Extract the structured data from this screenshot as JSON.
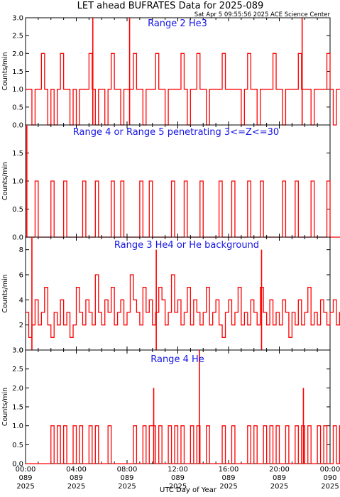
{
  "title": "LET ahead BUFRATES Data for 2025-089",
  "subtitle": "Sat Apr  5 09:55:56 2025 ACE Science Center",
  "colors": {
    "trace": "#ff0000",
    "label": "#1515e6",
    "axis": "#000000",
    "background": "#ffffff"
  },
  "chart_data": [
    {
      "type": "line",
      "label": "Range 2 He3",
      "ylabel": "Counts/min",
      "ylim": [
        0,
        3
      ],
      "yticks": [
        "0.0",
        "0.5",
        "1.0",
        "1.5",
        "2.0",
        "2.5",
        "3.0"
      ],
      "x": {
        "start_hour": 0,
        "end_hour": 24,
        "step_hours": 0.25
      },
      "values": [
        1,
        1,
        0,
        1,
        1,
        2,
        1,
        0,
        1,
        0,
        1,
        2,
        1,
        1,
        0,
        1,
        0,
        1,
        1,
        1,
        2,
        1,
        0,
        1,
        1,
        0,
        1,
        2,
        1,
        1,
        0,
        1,
        1,
        1,
        2,
        1,
        1,
        0,
        1,
        1,
        1,
        2,
        1,
        1,
        0,
        1,
        1,
        1,
        1,
        2,
        1,
        0,
        1,
        1,
        2,
        1,
        1,
        0,
        1,
        1,
        1,
        1,
        2,
        1,
        1,
        1,
        1,
        1,
        0,
        1,
        2,
        1,
        1,
        0,
        1,
        1,
        1,
        1,
        2,
        1,
        1,
        0,
        1,
        1,
        1,
        1,
        2,
        1,
        1,
        1,
        0,
        1,
        1,
        1,
        1,
        2,
        1,
        0,
        1,
        1
      ],
      "spikes": [
        {
          "hour": 5.3,
          "value": 3
        },
        {
          "hour": 8.2,
          "value": 3
        },
        {
          "hour": 21.8,
          "value": 3
        }
      ]
    },
    {
      "type": "line",
      "label": "Range 4 or Range 5 penetrating 3<=Z<=30",
      "ylabel": "Counts/min",
      "ylim": [
        0,
        2
      ],
      "yticks": [
        "0.0",
        "0.5",
        "1.0",
        "1.5"
      ],
      "x": {
        "start_hour": 0,
        "end_hour": 24,
        "step_hours": 0.25
      },
      "values": [
        0,
        0,
        0,
        1,
        0,
        0,
        0,
        0,
        1,
        0,
        0,
        0,
        1,
        0,
        0,
        0,
        0,
        0,
        1,
        0,
        0,
        0,
        1,
        0,
        0,
        0,
        0,
        1,
        0,
        0,
        1,
        0,
        0,
        0,
        0,
        0,
        1,
        0,
        0,
        1,
        0,
        0,
        0,
        0,
        0,
        0,
        1,
        0,
        0,
        0,
        1,
        0,
        0,
        0,
        0,
        1,
        0,
        0,
        0,
        0,
        0,
        1,
        0,
        0,
        0,
        1,
        0,
        0,
        0,
        0,
        1,
        0,
        0,
        0,
        1,
        0,
        0,
        0,
        0,
        0,
        0,
        1,
        0,
        0,
        0,
        1,
        0,
        0,
        0,
        0,
        1,
        0,
        0,
        0,
        0,
        1,
        0,
        0,
        0,
        0
      ],
      "spikes": [
        {
          "hour": 0.1,
          "value": 2
        }
      ]
    },
    {
      "type": "line",
      "label": "Range 3 He4 or He background",
      "ylabel": "Counts/min",
      "ylim": [
        0,
        9
      ],
      "yticks": [
        "0",
        "2",
        "4",
        "6",
        "8"
      ],
      "x": {
        "start_hour": 0,
        "end_hour": 24,
        "step_hours": 0.25
      },
      "values": [
        3,
        1,
        2,
        4,
        2,
        3,
        5,
        2,
        1,
        3,
        2,
        4,
        2,
        3,
        1,
        2,
        5,
        3,
        2,
        4,
        3,
        2,
        6,
        3,
        2,
        4,
        3,
        5,
        2,
        3,
        4,
        2,
        3,
        6,
        4,
        3,
        2,
        5,
        3,
        4,
        2,
        3,
        5,
        4,
        2,
        3,
        6,
        3,
        4,
        2,
        3,
        5,
        2,
        4,
        3,
        2,
        3,
        5,
        2,
        3,
        4,
        2,
        1,
        3,
        4,
        2,
        3,
        5,
        2,
        3,
        2,
        4,
        3,
        2,
        5,
        3,
        2,
        4,
        2,
        3,
        2,
        4,
        3,
        1,
        3,
        2,
        4,
        2,
        3,
        5,
        2,
        3,
        2,
        4,
        3,
        2,
        3,
        4,
        2,
        3
      ],
      "spikes": [
        {
          "hour": 0.5,
          "value": 9
        },
        {
          "hour": 10.3,
          "value": 8
        },
        {
          "hour": 18.6,
          "value": 8
        }
      ]
    },
    {
      "type": "line",
      "label": "Range 4 He",
      "ylabel": "Counts/min",
      "ylim": [
        0,
        3
      ],
      "yticks": [
        "0.0",
        "0.5",
        "1.0",
        "1.5",
        "2.0",
        "2.5",
        "3.0"
      ],
      "x": {
        "start_hour": 0,
        "end_hour": 24,
        "step_hours": 0.25
      },
      "values": [
        0,
        0,
        0,
        0,
        0,
        0,
        0,
        0,
        1,
        0,
        1,
        0,
        1,
        0,
        0,
        1,
        0,
        1,
        0,
        0,
        1,
        0,
        1,
        0,
        0,
        0,
        1,
        0,
        0,
        0,
        0,
        0,
        0,
        0,
        1,
        0,
        0,
        1,
        0,
        1,
        1,
        0,
        1,
        0,
        0,
        1,
        0,
        1,
        0,
        1,
        0,
        0,
        1,
        0,
        1,
        0,
        0,
        1,
        0,
        0,
        0,
        0,
        1,
        0,
        0,
        1,
        0,
        0,
        0,
        0,
        1,
        0,
        1,
        0,
        0,
        1,
        0,
        1,
        0,
        1,
        0,
        0,
        1,
        0,
        0,
        1,
        0,
        1,
        0,
        1,
        0,
        0,
        1,
        0,
        1,
        0,
        0,
        1,
        0,
        1
      ],
      "spikes": [
        {
          "hour": 10.1,
          "value": 2
        },
        {
          "hour": 13.7,
          "value": 3
        },
        {
          "hour": 21.9,
          "value": 2
        }
      ]
    }
  ],
  "xaxis": {
    "label": "UTC Day of Year",
    "ticks": [
      {
        "hour": 0,
        "time": "00:00",
        "doy": "089",
        "year": "2025"
      },
      {
        "hour": 4,
        "time": "04:00",
        "doy": "089",
        "year": "2025"
      },
      {
        "hour": 8,
        "time": "08:00",
        "doy": "089",
        "year": "2025"
      },
      {
        "hour": 12,
        "time": "12:00",
        "doy": "089",
        "year": "2025"
      },
      {
        "hour": 16,
        "time": "16:00",
        "doy": "089",
        "year": "2025"
      },
      {
        "hour": 20,
        "time": "20:00",
        "doy": "089",
        "year": "2025"
      },
      {
        "hour": 24,
        "time": "00:00",
        "doy": "090",
        "year": "2025"
      }
    ]
  }
}
